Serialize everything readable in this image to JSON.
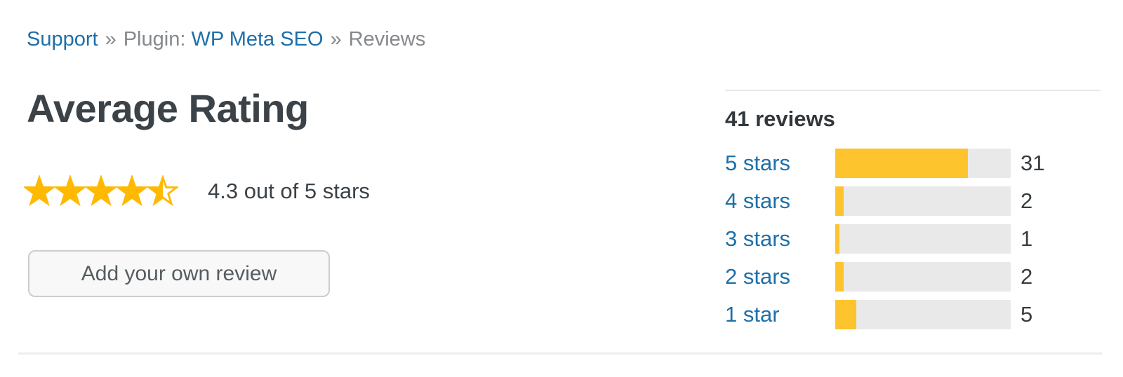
{
  "breadcrumb": {
    "support_link": "Support",
    "separator1": "»",
    "plugin_prefix": "Plugin:",
    "plugin_link": "WP Meta SEO",
    "separator2": "»",
    "current": "Reviews"
  },
  "rating": {
    "heading": "Average Rating",
    "value_text": "4.3 out of 5 stars",
    "stars_full": 4,
    "stars_half": 1,
    "stars_total": 5,
    "add_review_button": "Add your own review"
  },
  "reviews_summary": {
    "heading": "41 reviews",
    "total": 41,
    "rows": [
      {
        "label": "5 stars",
        "count": 31
      },
      {
        "label": "4 stars",
        "count": 2
      },
      {
        "label": "3 stars",
        "count": 1
      },
      {
        "label": "2 stars",
        "count": 2
      },
      {
        "label": "1 star",
        "count": 5
      }
    ]
  },
  "chart_data": {
    "type": "bar",
    "title": "41 reviews",
    "categories": [
      "5 stars",
      "4 stars",
      "3 stars",
      "2 stars",
      "1 star"
    ],
    "values": [
      31,
      2,
      1,
      2,
      5
    ],
    "xlim": [
      0,
      41
    ],
    "orientation": "horizontal"
  },
  "icons": {
    "full_star": "star-icon",
    "half_star": "star-half-icon"
  },
  "colors": {
    "link_blue": "#1e6fa8",
    "star_yellow": "#ffb900",
    "bar_yellow": "#fec42d",
    "bar_background": "#e9e9e9",
    "text_dark": "#3b4248",
    "text_gray": "#85888c",
    "divider": "#ededed"
  }
}
